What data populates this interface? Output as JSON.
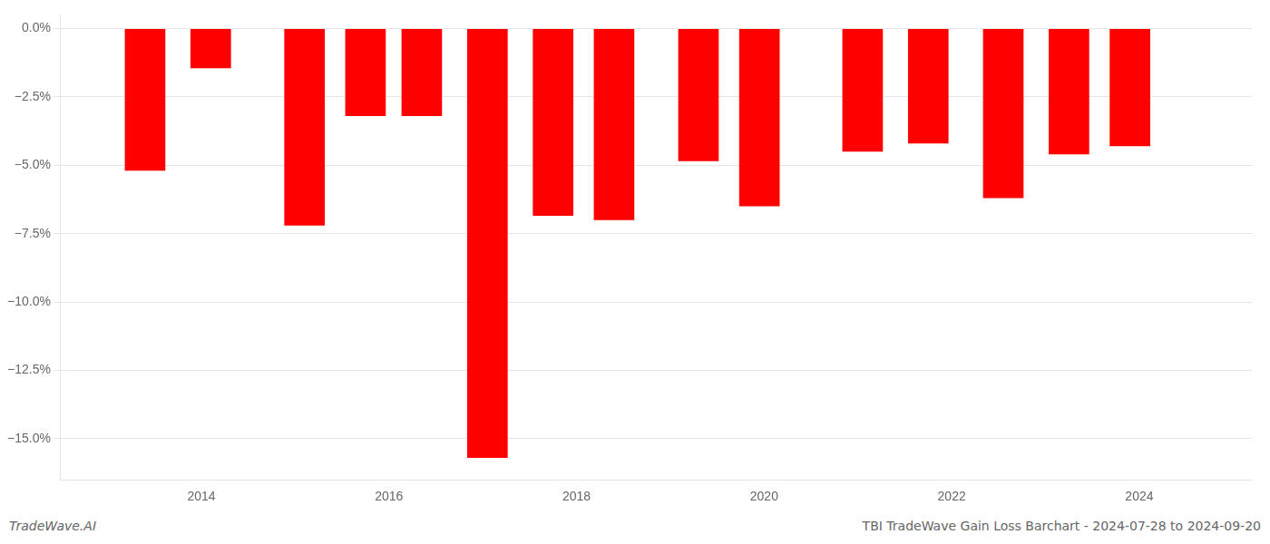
{
  "chart_data": {
    "type": "bar",
    "title": "TBI TradeWave Gain Loss Barchart - 2024-07-28 to 2024-09-20",
    "annotations": [
      "TradeWave.AI"
    ],
    "x": [
      2013.4,
      2014.1,
      2015.1,
      2015.75,
      2016.35,
      2017.05,
      2017.75,
      2018.4,
      2019.3,
      2019.95,
      2021.05,
      2021.75,
      2022.55,
      2023.25,
      2023.9
    ],
    "values": [
      -5.2,
      -1.45,
      -7.2,
      -3.2,
      -3.2,
      -15.7,
      -6.85,
      -7.0,
      -4.85,
      -6.5,
      -4.5,
      -4.2,
      -6.2,
      -4.6,
      -4.3
    ],
    "color": "#ff0000",
    "xlim": [
      2012.5,
      2025.2
    ],
    "xticks": [
      2014,
      2016,
      2018,
      2020,
      2022,
      2024
    ],
    "ylim": [
      -16.5,
      0.5
    ],
    "yticks": [
      {
        "value": 0.0,
        "label": "0.0%"
      },
      {
        "value": -2.5,
        "label": "−2.5%"
      },
      {
        "value": -5.0,
        "label": "−5.0%"
      },
      {
        "value": -7.5,
        "label": "−7.5%"
      },
      {
        "value": -10.0,
        "label": "−10.0%"
      },
      {
        "value": -12.5,
        "label": "−12.5%"
      },
      {
        "value": -15.0,
        "label": "−15.0%"
      }
    ],
    "grid": true
  }
}
